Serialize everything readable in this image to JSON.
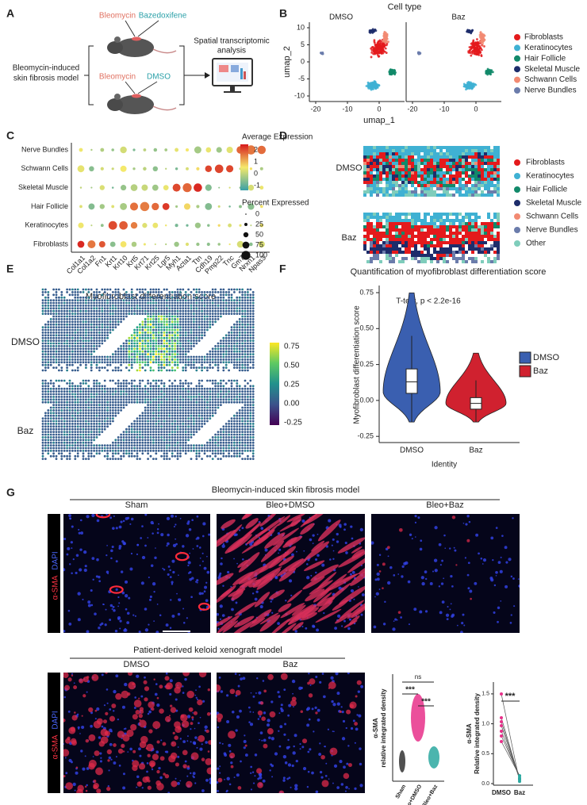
{
  "A": {
    "letter": "A",
    "treat_top": "Bleomycin",
    "drug_top": "Bazedoxifene",
    "treat_bottom": "Bleomycin",
    "drug_bottom": "DMSO",
    "model": [
      "Bleomycin-induced",
      "skin fibrosis model"
    ],
    "analysis": [
      "Spatial transcriptomic",
      "analysis"
    ]
  },
  "B": {
    "letter": "B",
    "title": "Cell type",
    "groups": [
      "DMSO",
      "Baz"
    ],
    "xlabel": "umap_1",
    "ylabel": "umap_2",
    "yticks": [
      "10",
      "5",
      "0",
      "-5",
      "-10"
    ],
    "xticks": [
      "-20",
      "-10",
      "0"
    ],
    "legend": [
      {
        "name": "Fibroblasts",
        "color": "#e41a1c"
      },
      {
        "name": "Keratinocytes",
        "color": "#3fb1d3"
      },
      {
        "name": "Hair Follicle",
        "color": "#12896a"
      },
      {
        "name": "Skeletal Muscle",
        "color": "#1d2d6b"
      },
      {
        "name": "Schwann Cells",
        "color": "#f28a72"
      },
      {
        "name": "Nerve Bundles",
        "color": "#6b7cab"
      }
    ]
  },
  "C": {
    "letter": "C",
    "rows": [
      "Nerve Bundles",
      "Schwann Cells",
      "Skeletal Muscle",
      "Hair Follicle",
      "Keratinocytes",
      "Fibroblasts"
    ],
    "genes": [
      "Col1a1",
      "Col1a2",
      "Fn1",
      "Krt1",
      "Krt10",
      "Krt5",
      "Krt71",
      "Krt25",
      "Lgr5",
      "Myh1",
      "Acta1",
      "Ttn",
      "Cdh19",
      "Pmp22",
      "Tnc",
      "Gm7",
      "Nrxn1",
      "Npas3"
    ],
    "color_title": "Average Expression",
    "color_ticks": [
      "2",
      "1",
      "0",
      "-1"
    ],
    "size_title": "Percent Expressed",
    "size_ticks": [
      "0",
      "25",
      "50",
      "75",
      "100"
    ]
  },
  "D": {
    "letter": "D",
    "groups": [
      "DMSO",
      "Baz"
    ],
    "legend": [
      {
        "name": "Fibroblasts",
        "color": "#e41a1c"
      },
      {
        "name": "Keratinocytes",
        "color": "#3fb1d3"
      },
      {
        "name": "Hair Follicle",
        "color": "#12896a"
      },
      {
        "name": "Skeletal Muscle",
        "color": "#1d2d6b"
      },
      {
        "name": "Schwann Cells",
        "color": "#f28a72"
      },
      {
        "name": "Nerve Bundles",
        "color": "#6b7cab"
      },
      {
        "name": "Other",
        "color": "#7fcdbb"
      }
    ]
  },
  "E": {
    "letter": "E",
    "title": "Myofibroblast differentiation score",
    "groups": [
      "DMSO",
      "Baz"
    ],
    "color_ticks": [
      "0.75",
      "0.50",
      "0.25",
      "0.00",
      "-0.25"
    ]
  },
  "F": {
    "letter": "F",
    "title": "Quantification of myofibroblast differentiation score",
    "annotation": "T-test, p < 2.2e-16",
    "ylabel": "Myofibroblast differentiation score",
    "xlabel": "Identity",
    "yticks": [
      "0.75",
      "0.50",
      "0.25",
      "0.00",
      "-0.25"
    ],
    "groups": [
      {
        "name": "DMSO",
        "color": "#3a5fb0"
      },
      {
        "name": "Baz",
        "color": "#d0212f"
      }
    ]
  },
  "G": {
    "letter": "G",
    "model1": "Bleomycin-induced skin fibrosis model",
    "conditions1": [
      "Sham",
      "Bleo+DMSO",
      "Bleo+Baz"
    ],
    "model2": "Patient-derived keloid xenograft model",
    "conditions2": [
      "DMSO",
      "Baz"
    ],
    "stain": [
      "α-SMA",
      "DAPI"
    ],
    "plot1": {
      "ylabel": [
        "α-SMA",
        "relative integrated density"
      ],
      "categories": [
        "Sham",
        "Bleo+DMSO",
        "Bleo+Baz"
      ],
      "sig": [
        "ns",
        "***",
        "***"
      ]
    },
    "plot2": {
      "ylabel": [
        "α-SMA",
        "Relative integrated density"
      ],
      "yticks": [
        "0.0",
        "0.5",
        "1.0",
        "1.5"
      ],
      "categories": [
        "DMSO",
        "Baz"
      ],
      "sig": "***"
    }
  }
}
